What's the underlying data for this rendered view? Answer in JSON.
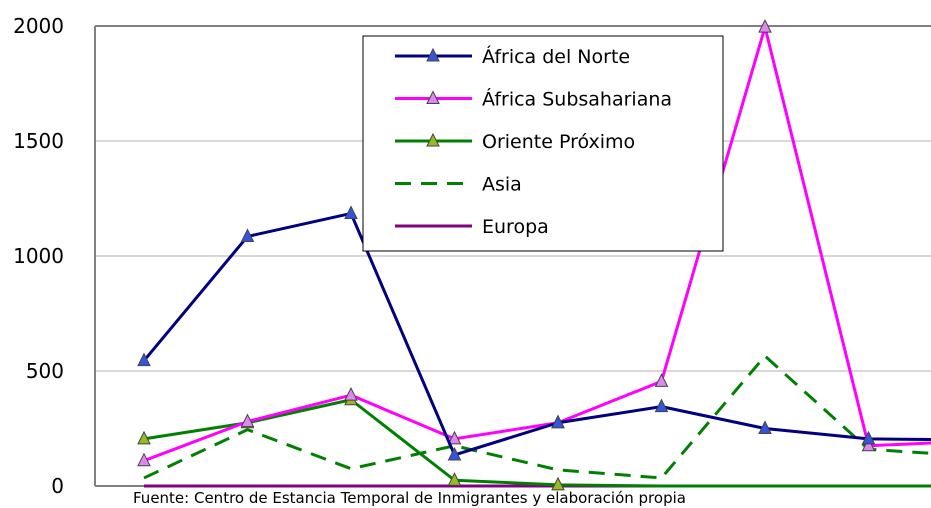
{
  "chart_data": {
    "type": "line",
    "title": "",
    "xlabel": "",
    "ylabel": "",
    "ylim": [
      0,
      2000
    ],
    "yticks": [
      "0",
      "500",
      "1000",
      "1500",
      "2000"
    ],
    "grid": "horizontal",
    "legend_position": "top-center",
    "x": [
      1,
      2,
      3,
      4,
      5,
      6,
      7,
      8,
      9
    ],
    "series": [
      {
        "name": "África del Norte",
        "color": "#000080",
        "style": "solid",
        "marker": "triangle",
        "values": [
          545,
          1085,
          1185,
          135,
          275,
          345,
          250,
          205,
          200
        ]
      },
      {
        "name": "África Subsahariana",
        "color": "#ff00ff",
        "style": "solid",
        "marker": "triangle",
        "values": [
          110,
          280,
          395,
          205,
          275,
          455,
          1995,
          175,
          195
        ]
      },
      {
        "name": "Oriente Próximo",
        "color": "#008000",
        "style": "solid",
        "marker": "triangle",
        "values": [
          205,
          275,
          375,
          25,
          5,
          0,
          0,
          0,
          0
        ]
      },
      {
        "name": "Asia",
        "color": "#008000",
        "style": "dashed",
        "marker": "none",
        "values": [
          35,
          245,
          75,
          175,
          70,
          35,
          565,
          160,
          130
        ]
      },
      {
        "name": "Europa",
        "color": "#800080",
        "style": "solid",
        "marker": "none",
        "values": [
          0,
          0,
          0,
          0,
          0,
          0,
          0,
          0,
          0
        ]
      }
    ],
    "source": "Fuente: Centro de Estancia Temporal de Inmigrantes y elaboración propia"
  }
}
